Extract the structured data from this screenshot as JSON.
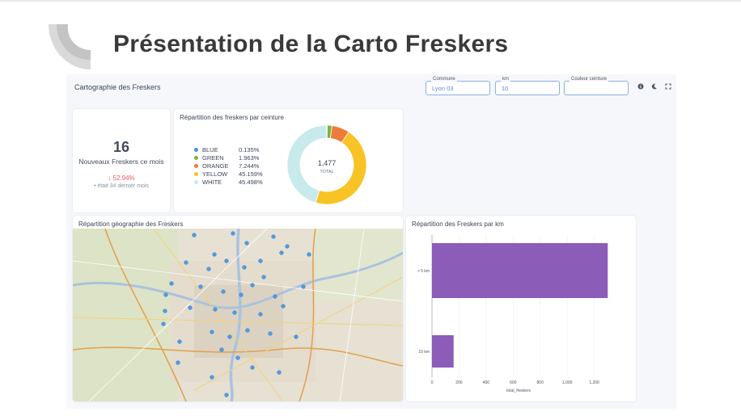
{
  "slide": {
    "title": "Présentation de la Carto Freskers"
  },
  "dashboard": {
    "title": "Cartographie des Freskers",
    "filters": [
      {
        "label": "Commune",
        "value": "Lyon 03"
      },
      {
        "label": "km",
        "value": "10"
      },
      {
        "label": "Couleur ceinture",
        "value": ""
      }
    ],
    "controls": [
      "info-icon",
      "moon-icon",
      "expand-icon"
    ]
  },
  "kpi": {
    "value": "16",
    "label": "Nouveaux Freskers ce mois",
    "change": "↓ 52.94%",
    "previous": "• était 34 dernier mois"
  },
  "donut_card": {
    "title": "Répartition des freskers par ceinture",
    "center_value": "1,477",
    "center_label": "TOTAL"
  },
  "map_card": {
    "title": "Répartition géographie des Freskers"
  },
  "bar_card": {
    "title": "Répartition des Freskers par km"
  },
  "chart_data": [
    {
      "type": "pie",
      "title": "Répartition des freskers par ceinture",
      "total": 1477,
      "series": [
        {
          "name": "BLUE",
          "label": "0.135%",
          "value": 0.135,
          "color": "#4a90d9"
        },
        {
          "name": "GREEN",
          "label": "1.963%",
          "value": 1.963,
          "color": "#7cb342"
        },
        {
          "name": "ORANGE",
          "label": "7.244%",
          "value": 7.244,
          "color": "#ec7c3a"
        },
        {
          "name": "YELLOW",
          "label": "45.159%",
          "value": 45.159,
          "color": "#f7c325"
        },
        {
          "name": "WHITE",
          "label": "45.498%",
          "value": 45.498,
          "color": "#c9eaec"
        }
      ]
    },
    {
      "type": "bar",
      "orientation": "horizontal",
      "title": "Répartition des Freskers par km",
      "categories": [
        "> 5 km",
        "10 km"
      ],
      "values": [
        1300,
        160
      ],
      "xlabel": "total_freskers",
      "xticks": [
        0,
        200,
        400,
        600,
        800,
        1000,
        1200
      ],
      "xtick_labels": [
        "0",
        "200",
        "400",
        "600",
        "800",
        "1,000",
        "1,200"
      ],
      "xlim": [
        0,
        1400
      ],
      "color": "#8b5cb8"
    }
  ]
}
